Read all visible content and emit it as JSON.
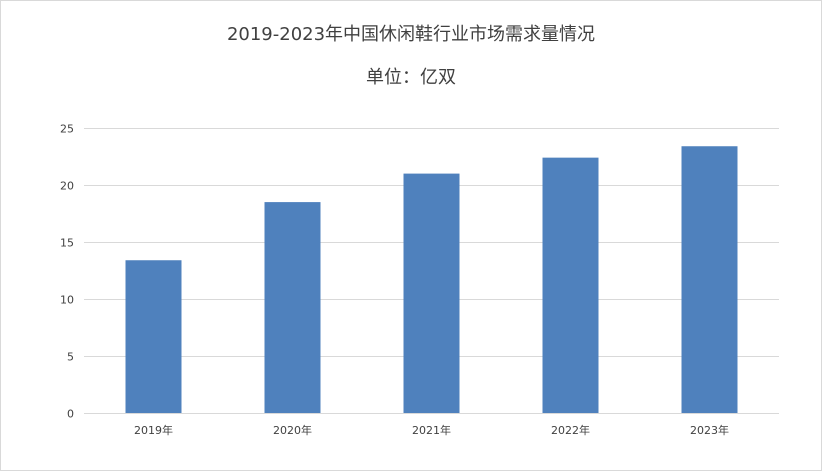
{
  "chart_data": {
    "type": "bar",
    "title": "2019-2023年中国休闲鞋行业市场需求量情况",
    "subtitle": "单位：亿双",
    "categories": [
      "2019年",
      "2020年",
      "2021年",
      "2022年",
      "2023年"
    ],
    "values": [
      13.4,
      18.5,
      21.0,
      22.4,
      23.4
    ],
    "ylim": [
      0,
      25
    ],
    "yticks": [
      0,
      5,
      10,
      15,
      20,
      25
    ],
    "grid": true,
    "legend": "none",
    "bar_color": "#4f81bd",
    "grid_color": "#d9d9d9"
  }
}
